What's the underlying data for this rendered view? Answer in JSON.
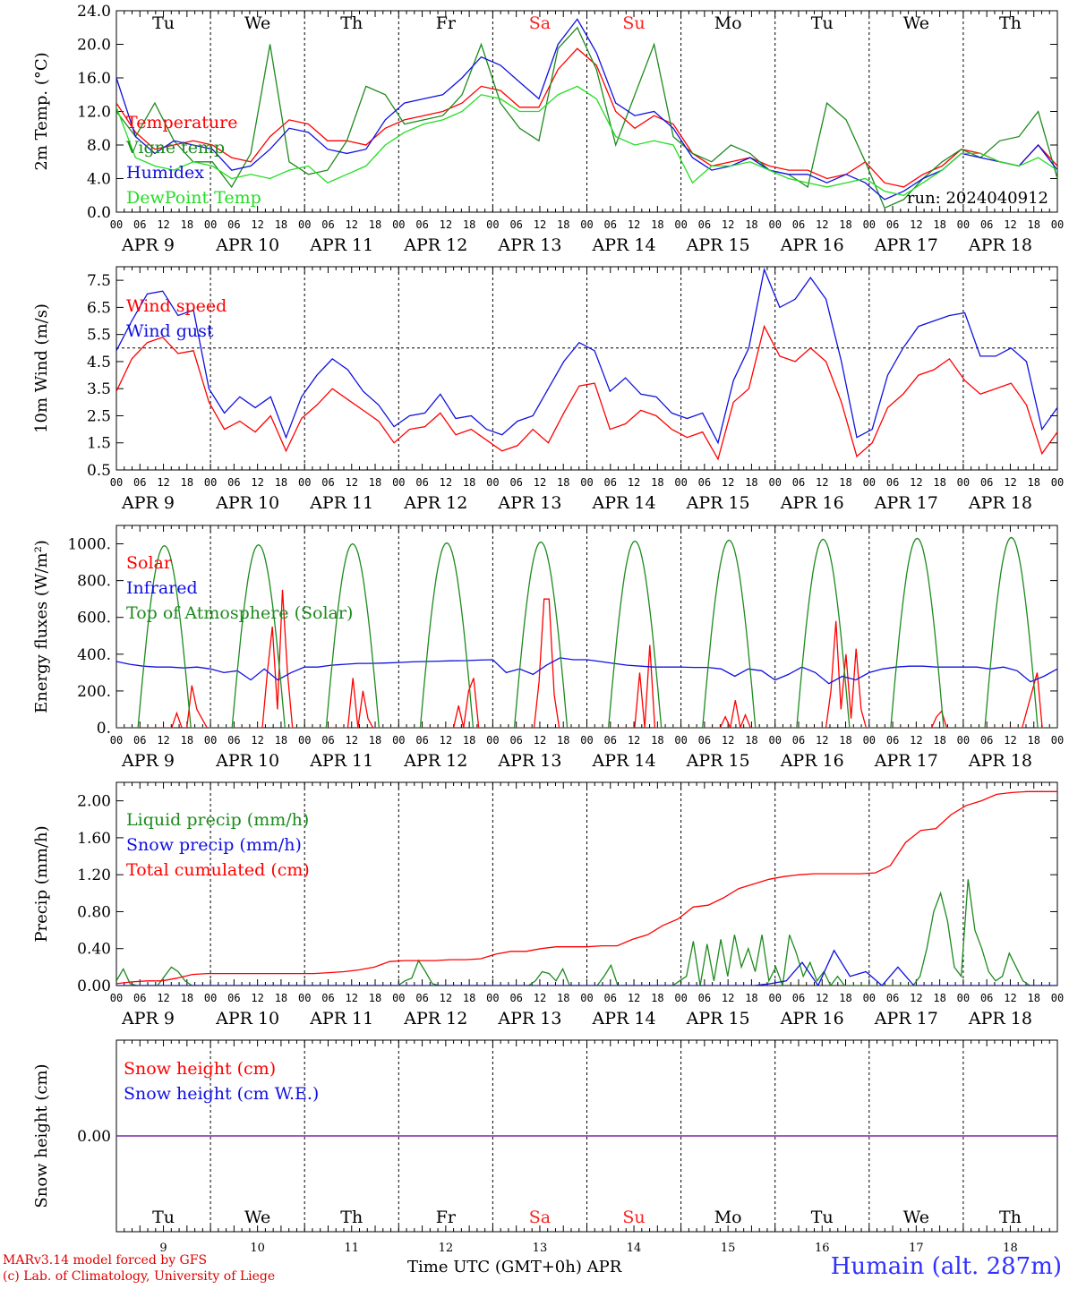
{
  "colors": {
    "red": "#ff0000",
    "dark_green": "#1e8a1e",
    "light_green": "#22dd22",
    "blue": "#1010e0",
    "black": "#000000",
    "purple": "#7a1fa2",
    "weekend": "#ff2020"
  },
  "common": {
    "hour_ticks": [
      "00",
      "06",
      "12",
      "18"
    ],
    "date_labels": [
      "APR  9",
      "APR 10",
      "APR 11",
      "APR 12",
      "APR 13",
      "APR 14",
      "APR 15",
      "APR 16",
      "APR 17",
      "APR 18"
    ],
    "day_abbrevs": [
      "Tu",
      "We",
      "Th",
      "Fr",
      "Sa",
      "Su",
      "Mo",
      "Tu",
      "We",
      "Th"
    ],
    "weekend_days": [
      "Sa",
      "Su"
    ],
    "day_numbers": [
      "9",
      "10",
      "11",
      "12",
      "13",
      "14",
      "15",
      "16",
      "17",
      "18"
    ]
  },
  "footer": {
    "model_line": "MARv3.14 model forced by GFS",
    "lab_line": "(c) Lab. of Climatology, University of Liege",
    "xaxis_title": "Time UTC (GMT+0h) APR",
    "station": "Humain (alt. 287m)"
  },
  "chart_data": [
    {
      "type": "line",
      "ylabel": "2m Temp. (°C)",
      "ylim": [
        0,
        24
      ],
      "yticks": [
        "0.0",
        "4.0",
        "8.0",
        "12.0",
        "16.0",
        "20.0",
        "24.0"
      ],
      "annotation": "run: 2024040912",
      "series": [
        {
          "name": "Temperature",
          "color": "red",
          "values": [
            13.0,
            9.5,
            7.5,
            8.0,
            8.5,
            8.0,
            6.5,
            6.0,
            9.0,
            11.0,
            10.5,
            8.5,
            8.5,
            8.0,
            10.0,
            11.0,
            11.5,
            12.0,
            13.0,
            15.0,
            14.5,
            12.5,
            12.5,
            17.0,
            19.5,
            17.5,
            12.0,
            10.0,
            11.5,
            10.5,
            7.0,
            5.5,
            6.0,
            6.5,
            5.5,
            5.0,
            5.0,
            4.0,
            4.5,
            6.0,
            3.5,
            3.0,
            4.5,
            5.5,
            7.5,
            7.0,
            6.0,
            5.5,
            8.0,
            5.5
          ]
        },
        {
          "name": "Vigne temp",
          "color": "dark_green",
          "values": [
            12.0,
            9.0,
            13.0,
            8.5,
            6.0,
            6.0,
            3.0,
            7.0,
            20.0,
            6.0,
            4.5,
            5.0,
            8.5,
            15.0,
            14.0,
            10.5,
            11.0,
            11.5,
            14.0,
            20.0,
            13.0,
            10.0,
            8.5,
            19.5,
            22.0,
            17.0,
            8.0,
            14.0,
            20.0,
            9.0,
            7.0,
            6.0,
            8.0,
            7.0,
            5.0,
            4.5,
            3.0,
            13.0,
            11.0,
            6.0,
            0.5,
            1.5,
            4.0,
            6.0,
            7.5,
            6.5,
            8.5,
            9.0,
            12.0,
            4.0
          ]
        },
        {
          "name": "Humidex",
          "color": "blue",
          "values": [
            16.0,
            9.0,
            7.0,
            8.5,
            8.0,
            7.5,
            5.0,
            5.5,
            7.5,
            10.0,
            9.5,
            7.5,
            7.0,
            7.5,
            11.0,
            13.0,
            13.5,
            14.0,
            16.0,
            18.5,
            17.5,
            15.5,
            13.5,
            20.0,
            23.0,
            19.0,
            13.0,
            11.5,
            12.0,
            10.0,
            6.5,
            5.0,
            5.5,
            6.5,
            5.0,
            4.5,
            4.5,
            3.5,
            4.5,
            3.5,
            1.5,
            2.5,
            4.0,
            5.0,
            7.0,
            6.5,
            6.0,
            5.5,
            8.0,
            5.0
          ]
        },
        {
          "name": "DewPoint Temp",
          "color": "light_green",
          "values": [
            12.5,
            6.5,
            5.5,
            5.0,
            6.0,
            5.5,
            4.0,
            4.5,
            4.0,
            5.0,
            5.5,
            3.5,
            4.5,
            5.5,
            8.0,
            9.5,
            10.5,
            11.0,
            12.0,
            14.0,
            13.5,
            12.0,
            12.0,
            14.0,
            15.0,
            13.5,
            9.0,
            8.0,
            8.5,
            8.0,
            3.5,
            5.5,
            5.5,
            6.0,
            5.0,
            4.0,
            3.5,
            3.0,
            3.5,
            4.0,
            2.5,
            2.0,
            3.5,
            5.0,
            7.0,
            7.0,
            6.0,
            5.5,
            6.5,
            5.0
          ]
        }
      ]
    },
    {
      "type": "line",
      "ylabel": "10m Wind (m/s)",
      "ylim": [
        0.5,
        8.0
      ],
      "yticks": [
        "0.5",
        "1.5",
        "2.5",
        "3.5",
        "4.5",
        "5.5",
        "6.5",
        "7.5"
      ],
      "reference_line": 5.0,
      "series": [
        {
          "name": "Wind speed",
          "color": "red",
          "values": [
            3.4,
            4.6,
            5.2,
            5.4,
            4.8,
            4.9,
            3.0,
            2.0,
            2.3,
            1.9,
            2.5,
            1.2,
            2.4,
            2.9,
            3.5,
            3.1,
            2.7,
            2.3,
            1.5,
            2.0,
            2.1,
            2.6,
            1.8,
            2.0,
            1.6,
            1.2,
            1.4,
            2.0,
            1.5,
            2.6,
            3.6,
            3.7,
            2.0,
            2.2,
            2.7,
            2.5,
            2.0,
            1.7,
            1.9,
            0.9,
            3.0,
            3.5,
            5.8,
            4.7,
            4.5,
            5.0,
            4.5,
            3.0,
            1.0,
            1.5,
            2.8,
            3.3,
            4.0,
            4.2,
            4.6,
            3.8,
            3.3,
            3.5,
            3.7,
            2.9,
            1.1,
            1.9
          ]
        },
        {
          "name": "Wind gust",
          "color": "blue",
          "values": [
            4.9,
            6.0,
            7.0,
            7.1,
            6.2,
            6.4,
            3.5,
            2.6,
            3.2,
            2.8,
            3.2,
            1.7,
            3.2,
            4.0,
            4.6,
            4.2,
            3.4,
            2.9,
            2.1,
            2.5,
            2.6,
            3.3,
            2.4,
            2.5,
            2.0,
            1.8,
            2.3,
            2.5,
            3.5,
            4.5,
            5.2,
            4.9,
            3.4,
            3.9,
            3.3,
            3.2,
            2.6,
            2.4,
            2.6,
            1.5,
            3.8,
            5.0,
            7.9,
            6.5,
            6.8,
            7.6,
            6.8,
            4.5,
            1.7,
            2.0,
            4.0,
            5.0,
            5.8,
            6.0,
            6.2,
            6.3,
            4.7,
            4.7,
            5.0,
            4.5,
            2.0,
            2.8
          ]
        }
      ]
    },
    {
      "type": "line",
      "ylabel": "Energy fluxes (W/m²)",
      "ylim": [
        0,
        1100
      ],
      "yticks": [
        "0.",
        "200.",
        "400.",
        "600.",
        "800.",
        "1000."
      ],
      "series": [
        {
          "name": "Solar",
          "color": "red",
          "values": [
            0,
            0,
            0,
            0,
            0,
            0,
            0,
            0,
            0,
            0,
            0,
            0,
            80,
            0,
            0,
            230,
            100,
            50,
            0,
            0,
            0,
            0,
            0,
            0,
            0,
            0,
            0,
            0,
            0,
            0,
            300,
            550,
            100,
            750,
            300,
            0,
            0,
            0,
            0,
            0,
            0,
            0,
            0,
            0,
            0,
            0,
            0,
            270,
            0,
            200,
            50,
            0,
            0,
            0,
            0,
            0,
            0,
            0,
            0,
            0,
            0,
            0,
            0,
            0,
            0,
            0,
            0,
            0,
            120,
            0,
            200,
            270,
            0,
            0,
            0,
            0,
            0,
            0,
            0,
            0,
            0,
            0,
            0,
            0,
            250,
            700,
            700,
            180,
            0,
            0,
            0,
            0,
            0,
            0,
            0,
            0,
            0,
            0,
            0,
            0,
            0,
            0,
            0,
            0,
            300,
            0,
            450,
            0,
            0,
            0,
            0,
            0,
            0,
            0,
            0,
            0,
            0,
            0,
            0,
            0,
            0,
            60,
            0,
            150,
            0,
            70,
            0,
            0,
            0,
            0,
            0,
            0,
            0,
            0,
            0,
            0,
            0,
            0,
            0,
            0,
            0,
            0,
            200,
            580,
            100,
            400,
            50,
            430,
            100,
            0,
            0,
            0,
            0,
            0,
            0,
            0,
            0,
            0,
            0,
            0,
            0,
            0,
            0,
            60,
            90,
            0,
            0,
            0,
            0,
            0,
            0,
            0,
            0,
            0,
            0,
            0,
            0,
            0,
            0,
            0,
            0,
            100,
            200,
            300,
            0,
            0,
            0,
            0
          ]
        },
        {
          "name": "Infrared",
          "color": "blue",
          "values": [
            360,
            345,
            335,
            330,
            330,
            325,
            330,
            320,
            300,
            310,
            260,
            320,
            260,
            300,
            330,
            330,
            340,
            345,
            350,
            350,
            352,
            355,
            358,
            360,
            362,
            364,
            365,
            368,
            370,
            300,
            320,
            290,
            340,
            380,
            370,
            370,
            360,
            350,
            340,
            335,
            330,
            330,
            330,
            328,
            328,
            320,
            280,
            320,
            310,
            260,
            290,
            330,
            300,
            240,
            280,
            260,
            300,
            320,
            330,
            335,
            335,
            330,
            330,
            330,
            330,
            320,
            330,
            310,
            250,
            280,
            320
          ]
        },
        {
          "name": "Top of Atmosphere (Solar)",
          "color": "dark_green",
          "peaks": [
            990,
            995,
            1000,
            1005,
            1010,
            1015,
            1020,
            1025,
            1030,
            1035
          ]
        }
      ]
    },
    {
      "type": "line",
      "ylabel": "Precip (mm/h)",
      "ylim": [
        0,
        2.2
      ],
      "yticks": [
        "0.00",
        "0.40",
        "0.80",
        "1.20",
        "1.60",
        "2.00"
      ],
      "series": [
        {
          "name": "Liquid precip (mm/h)",
          "color": "dark_green",
          "values": [
            0.05,
            0.18,
            0.02,
            0.0,
            0.0,
            0.0,
            0.0,
            0.1,
            0.2,
            0.15,
            0.05,
            0.0,
            0.0,
            0.0,
            0.0,
            0.0,
            0.0,
            0.0,
            0.0,
            0.0,
            0.0,
            0.0,
            0.0,
            0.0,
            0.0,
            0.0,
            0.0,
            0.0,
            0.0,
            0.0,
            0.0,
            0.0,
            0.0,
            0.0,
            0.0,
            0.0,
            0.0,
            0.0,
            0.0,
            0.0,
            0.0,
            0.0,
            0.05,
            0.08,
            0.27,
            0.15,
            0.02,
            0.0,
            0.0,
            0.0,
            0.0,
            0.0,
            0.0,
            0.0,
            0.0,
            0.0,
            0.0,
            0.0,
            0.0,
            0.0,
            0.0,
            0.05,
            0.15,
            0.13,
            0.05,
            0.18,
            0.0,
            0.0,
            0.0,
            0.0,
            0.0,
            0.1,
            0.22,
            0.0,
            0.0,
            0.0,
            0.0,
            0.0,
            0.0,
            0.0,
            0.0,
            0.0,
            0.05,
            0.1,
            0.48,
            0.0,
            0.45,
            0.05,
            0.5,
            0.1,
            0.55,
            0.2,
            0.4,
            0.15,
            0.55,
            0.05,
            0.2,
            0.0,
            0.55,
            0.35,
            0.1,
            0.25,
            0.05,
            0.15,
            0.0,
            0.1,
            0.0,
            0.0,
            0.0,
            0.0,
            0.0,
            0.0,
            0.0,
            0.0,
            0.0,
            0.0,
            0.0,
            0.1,
            0.4,
            0.8,
            1.0,
            0.7,
            0.2,
            0.1,
            1.15,
            0.6,
            0.4,
            0.15,
            0.05,
            0.1,
            0.35,
            0.2,
            0.05,
            0.0,
            0.0,
            0.0,
            0.0,
            0.0
          ]
        },
        {
          "name": "Snow precip (mm/h)",
          "color": "blue",
          "values": [
            0,
            0,
            0,
            0,
            0,
            0,
            0,
            0,
            0,
            0,
            0,
            0,
            0,
            0,
            0,
            0,
            0,
            0,
            0,
            0,
            0,
            0,
            0,
            0,
            0,
            0,
            0,
            0,
            0,
            0,
            0,
            0,
            0,
            0,
            0,
            0,
            0,
            0,
            0,
            0,
            0,
            0.02,
            0.05,
            0.25,
            0.0,
            0.38,
            0.1,
            0.15,
            0.0,
            0.2,
            0.0,
            0.0,
            0.0,
            0.0,
            0.0,
            0.0,
            0.0,
            0.0,
            0.0,
            0.0
          ]
        },
        {
          "name": "Total cumulated (cm)",
          "color": "red",
          "values": [
            0.02,
            0.04,
            0.05,
            0.05,
            0.08,
            0.12,
            0.13,
            0.13,
            0.13,
            0.13,
            0.13,
            0.13,
            0.13,
            0.13,
            0.14,
            0.15,
            0.17,
            0.2,
            0.26,
            0.27,
            0.27,
            0.27,
            0.28,
            0.28,
            0.29,
            0.34,
            0.37,
            0.37,
            0.4,
            0.42,
            0.42,
            0.42,
            0.43,
            0.43,
            0.5,
            0.55,
            0.65,
            0.72,
            0.85,
            0.87,
            0.95,
            1.05,
            1.1,
            1.15,
            1.18,
            1.2,
            1.21,
            1.21,
            1.21,
            1.21,
            1.22,
            1.3,
            1.55,
            1.68,
            1.7,
            1.85,
            1.95,
            2.0,
            2.07,
            2.09,
            2.1,
            2.1,
            2.1
          ]
        }
      ]
    },
    {
      "type": "line",
      "ylabel": "Snow height (cm)",
      "ylim": [
        -1,
        1
      ],
      "yticks": [
        "0.00"
      ],
      "series": [
        {
          "name": "Snow height (cm)",
          "color": "red",
          "values": [
            0,
            0
          ]
        },
        {
          "name": "Snow height (cm W.E.)",
          "color": "blue",
          "values": [
            0,
            0
          ]
        }
      ]
    }
  ]
}
